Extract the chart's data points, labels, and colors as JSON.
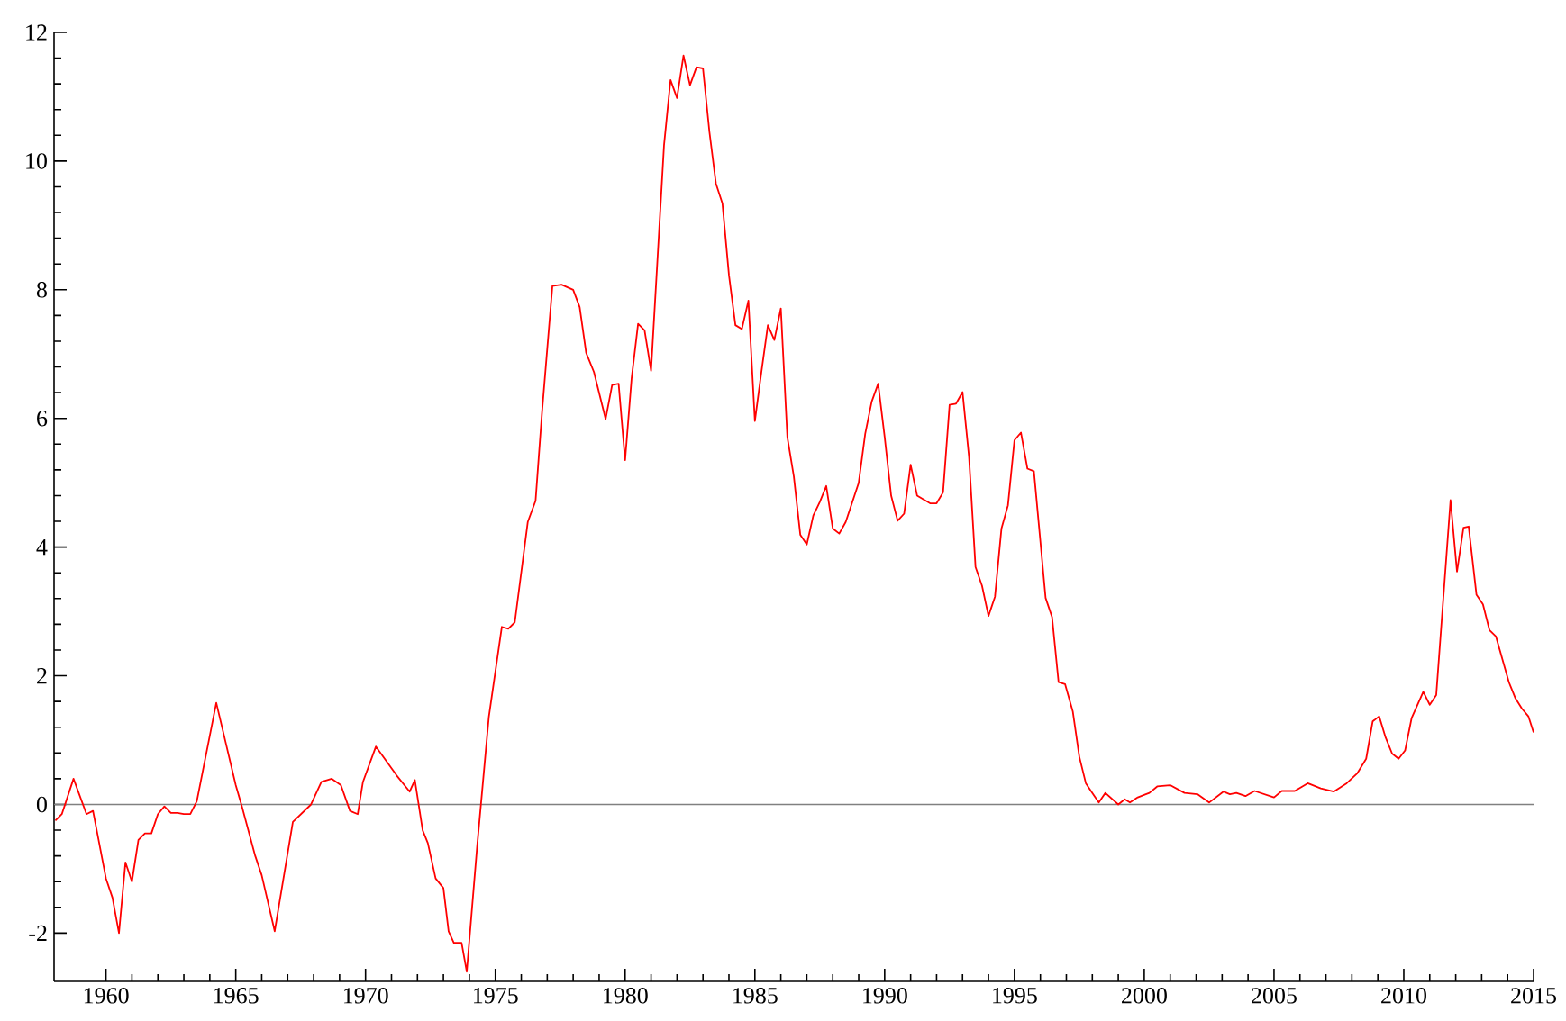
{
  "chart_data": {
    "type": "line",
    "x": [
      1958.05,
      1958.3,
      1958.75,
      1959.25,
      1959.5,
      1960,
      1960.25,
      1960.5,
      1960.75,
      1961,
      1961.25,
      1961.5,
      1961.75,
      1962,
      1962.25,
      1962.5,
      1962.75,
      1963,
      1963.25,
      1963.5,
      1964.25,
      1965,
      1965.25,
      1965.75,
      1966,
      1966.5,
      1967.2,
      1967.9,
      1968.3,
      1968.7,
      1969.05,
      1969.4,
      1969.7,
      1969.9,
      1970.4,
      1971.2,
      1971.7,
      1971.9,
      1972.2,
      1972.4,
      1972.7,
      1973,
      1973.2,
      1973.4,
      1973.7,
      1973.9,
      1974.3,
      1974.75,
      1975.25,
      1975.5,
      1975.75,
      1976.25,
      1976.55,
      1976.8,
      1977.2,
      1977.55,
      1978,
      1978.25,
      1978.5,
      1978.8,
      1979.25,
      1979.5,
      1979.75,
      1980,
      1980.25,
      1980.5,
      1980.75,
      1981,
      1981.5,
      1981.75,
      1982,
      1982.25,
      1982.5,
      1982.75,
      1983,
      1983.25,
      1983.5,
      1983.75,
      1984,
      1984.25,
      1984.5,
      1984.75,
      1985,
      1985.25,
      1985.5,
      1985.75,
      1986,
      1986.25,
      1986.5,
      1986.75,
      1987,
      1987.25,
      1987.5,
      1987.75,
      1988,
      1988.25,
      1988.5,
      1989,
      1989.25,
      1989.5,
      1989.75,
      1990,
      1990.25,
      1990.5,
      1990.75,
      1991,
      1991.25,
      1991.75,
      1992,
      1992.25,
      1992.5,
      1992.75,
      1993,
      1993.25,
      1993.5,
      1993.75,
      1994,
      1994.25,
      1994.5,
      1994.75,
      1995,
      1995.25,
      1995.5,
      1995.75,
      1996.2,
      1996.45,
      1996.7,
      1996.95,
      1997.25,
      1997.5,
      1997.75,
      1998,
      1998.25,
      1998.5,
      1999,
      1999.25,
      1999.45,
      1999.75,
      2000.2,
      2000.5,
      2001,
      2001.55,
      2002.05,
      2002.5,
      2003.05,
      2003.3,
      2003.55,
      2003.9,
      2004.25,
      2005,
      2005.3,
      2005.8,
      2006.3,
      2006.8,
      2007.3,
      2007.8,
      2008.2,
      2008.55,
      2008.8,
      2009.05,
      2009.3,
      2009.55,
      2009.8,
      2010.05,
      2010.3,
      2010.75,
      2011,
      2011.25,
      2011.8,
      2012.05,
      2012.3,
      2012.5,
      2012.8,
      2013.05,
      2013.3,
      2013.55,
      2014.05,
      2014.3,
      2014.55,
      2014.8,
      2015
    ],
    "series": [
      {
        "color": "#ff0000",
        "values": [
          -0.25,
          -0.15,
          0.4,
          -0.15,
          -0.1,
          -1.15,
          -1.45,
          -2.0,
          -0.9,
          -1.2,
          -0.55,
          -0.45,
          -0.45,
          -0.15,
          -0.03,
          -0.13,
          -0.13,
          -0.15,
          -0.15,
          0.05,
          1.58,
          0.3,
          -0.05,
          -0.8,
          -1.1,
          -1.97,
          -0.27,
          0.0,
          0.35,
          0.4,
          0.3,
          -0.1,
          -0.15,
          0.35,
          0.9,
          0.45,
          0.2,
          0.38,
          -0.4,
          -0.6,
          -1.15,
          -1.3,
          -1.97,
          -2.15,
          -2.15,
          -2.6,
          -0.65,
          1.36,
          2.76,
          2.73,
          2.83,
          4.39,
          4.72,
          6.1,
          8.06,
          8.08,
          8.0,
          7.73,
          7.02,
          6.72,
          5.99,
          6.52,
          6.54,
          5.35,
          6.62,
          7.47,
          7.37,
          6.74,
          10.25,
          11.26,
          10.98,
          11.64,
          11.18,
          11.46,
          11.44,
          10.45,
          9.65,
          9.34,
          8.23,
          7.45,
          7.39,
          7.83,
          5.96,
          6.72,
          7.45,
          7.22,
          7.71,
          5.71,
          5.1,
          4.19,
          4.04,
          4.49,
          4.7,
          4.95,
          4.29,
          4.21,
          4.39,
          5.0,
          5.76,
          6.26,
          6.54,
          5.71,
          4.8,
          4.41,
          4.52,
          5.28,
          4.8,
          4.68,
          4.68,
          4.85,
          6.21,
          6.23,
          6.41,
          5.4,
          3.69,
          3.4,
          2.93,
          3.23,
          4.29,
          4.65,
          5.66,
          5.78,
          5.22,
          5.18,
          3.21,
          2.91,
          1.9,
          1.87,
          1.44,
          0.74,
          0.33,
          0.18,
          0.03,
          0.18,
          0.0,
          0.08,
          0.03,
          0.11,
          0.18,
          0.28,
          0.3,
          0.18,
          0.16,
          0.03,
          0.2,
          0.16,
          0.18,
          0.13,
          0.21,
          0.11,
          0.21,
          0.21,
          0.33,
          0.25,
          0.2,
          0.33,
          0.48,
          0.71,
          1.29,
          1.37,
          1.04,
          0.79,
          0.71,
          0.84,
          1.34,
          1.75,
          1.55,
          1.7,
          4.73,
          3.62,
          4.3,
          4.32,
          3.26,
          3.11,
          2.71,
          2.61,
          1.9,
          1.65,
          1.49,
          1.37,
          1.12
        ]
      }
    ],
    "xlim": [
      1958,
      2015
    ],
    "ylim": [
      -2.75,
      12
    ],
    "xticks": [
      1960,
      1965,
      1970,
      1975,
      1980,
      1985,
      1990,
      1995,
      2000,
      2005,
      2010,
      2015
    ],
    "yticks": [
      -2,
      0,
      2,
      4,
      6,
      8,
      10,
      12
    ],
    "ref_lines": [
      {
        "axis": "y",
        "value": 0,
        "color": "#808080"
      }
    ],
    "grid": false,
    "marker": "none",
    "line_style": "solid"
  }
}
